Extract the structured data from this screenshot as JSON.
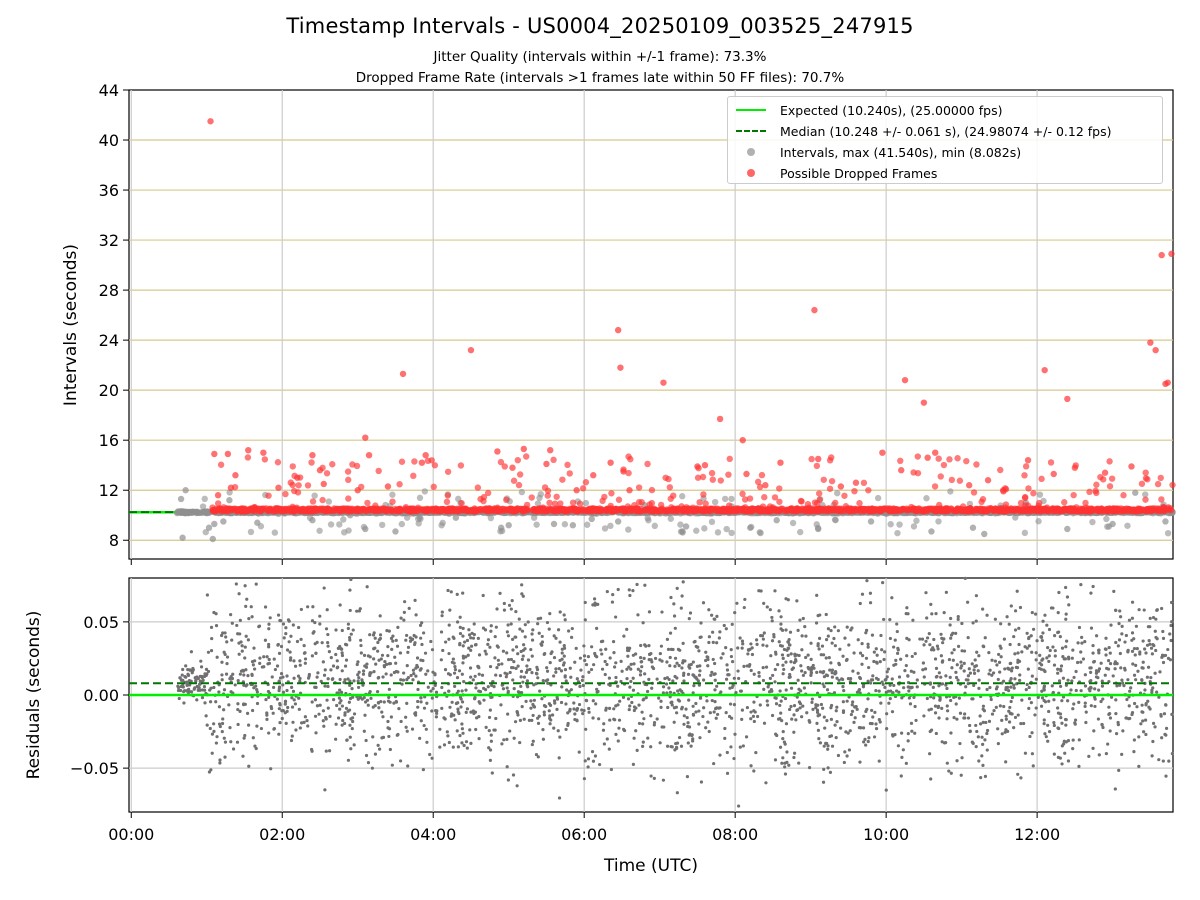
{
  "header": {
    "title": "Timestamp Intervals - US0004_20250109_003525_247915",
    "subtitle1": "Jitter Quality (intervals within +/-1 frame): 73.3%",
    "subtitle2": "Dropped Frame Rate (intervals >1 frames late within 50 FF files): 70.7%"
  },
  "colors": {
    "expected": "#00ee00",
    "median": "#007700",
    "intervals": "#909090",
    "dropped": "#ff3333",
    "residuals": "#707070",
    "hgrid_top": "#d7c98c",
    "grid": "#cccccc"
  },
  "legend": {
    "expected": "Expected (10.240s), (25.00000 fps)",
    "median": "Median (10.248 +/- 0.061 s), (24.98074 +/- 0.12 fps)",
    "intervals": "Intervals, max (41.540s), min (8.082s)",
    "dropped": "Possible Dropped Frames"
  },
  "chart_data": [
    {
      "type": "scatter",
      "ylabel": "Intervals (seconds)",
      "x_range_hours": [
        -0.03,
        13.8
      ],
      "ylim": [
        6.5,
        44
      ],
      "yticks": [
        8,
        12,
        16,
        20,
        24,
        28,
        32,
        36,
        40,
        44
      ],
      "grid": true,
      "legend_position": "top-right",
      "expected_value": 10.24,
      "median_value": 10.248,
      "series": [
        {
          "name": "Intervals, max (41.540s), min (8.082s)",
          "x_range_hours": [
            0.6,
            13.8
          ],
          "baseline": 10.24,
          "min": 8.082,
          "max": 41.54,
          "x_hours": [
            0.62,
            0.66,
            0.68,
            0.72,
            1.03,
            1.08,
            1.1,
            1.22,
            1.3,
            1.67,
            2.4,
            2.9,
            3.1,
            3.5,
            4.3,
            4.9,
            5.0,
            5.6,
            5.85,
            6.1,
            6.45,
            6.8,
            7.3,
            7.35,
            8.2,
            8.55,
            9.1,
            9.8,
            10.6,
            11.15,
            11.3,
            11.85,
            12.4,
            13.0,
            13.3,
            13.7
          ],
          "y": [
            10.3,
            11.3,
            8.2,
            12.0,
            9.0,
            8.1,
            9.3,
            9.5,
            11.2,
            9.4,
            9.6,
            10.0,
            8.9,
            8.7,
            9.8,
            9.0,
            9.2,
            9.3,
            9.2,
            9.7,
            9.5,
            10.8,
            8.7,
            9.1,
            9.0,
            9.6,
            8.9,
            9.5,
            8.7,
            9.0,
            8.5,
            11.0,
            8.9,
            9.3,
            11.8,
            9.5
          ]
        },
        {
          "name": "Possible Dropped Frames",
          "x_range_hours": [
            1.05,
            13.8
          ],
          "baseline": 10.25,
          "x_hours": [
            1.05,
            1.1,
            1.15,
            1.28,
            1.32,
            1.38,
            1.55,
            1.75,
            1.95,
            2.2,
            2.4,
            2.5,
            2.55,
            3.0,
            3.1,
            3.15,
            3.4,
            3.6,
            3.85,
            3.9,
            4.5,
            4.85,
            5.05,
            5.2,
            5.5,
            5.55,
            5.9,
            6.12,
            6.35,
            6.45,
            6.48,
            6.52,
            6.6,
            7.05,
            7.5,
            7.6,
            7.8,
            8.1,
            8.15,
            8.4,
            8.6,
            9.05,
            9.1,
            9.4,
            9.6,
            9.95,
            10.2,
            10.25,
            10.5,
            10.55,
            10.65,
            11.1,
            11.35,
            11.55,
            11.88,
            12.1,
            12.22,
            12.4,
            12.5,
            12.9,
            13.25,
            13.5,
            13.57,
            13.65,
            13.7,
            13.73,
            13.78
          ],
          "y": [
            41.5,
            14.9,
            11.6,
            14.9,
            12.2,
            13.2,
            15.2,
            15.0,
            12.2,
            13.0,
            14.8,
            13.6,
            12.5,
            12.0,
            16.2,
            14.8,
            12.3,
            21.3,
            14.2,
            14.8,
            23.2,
            15.1,
            13.8,
            15.3,
            14.1,
            15.2,
            12.0,
            13.2,
            14.2,
            24.8,
            21.8,
            13.5,
            12.0,
            20.6,
            13.9,
            14.0,
            17.7,
            16.0,
            13.3,
            12.4,
            14.2,
            26.4,
            14.5,
            12.3,
            12.6,
            15.0,
            13.6,
            20.8,
            19.0,
            14.6,
            15.0,
            12.4,
            12.8,
            12.0,
            14.4,
            21.6,
            13.3,
            19.3,
            13.8,
            13.4,
            13.9,
            23.8,
            23.2,
            30.8,
            20.5,
            20.6,
            30.9
          ]
        },
        {
          "name": "Expected (10.240s), (25.00000 fps)",
          "line_y": 10.24
        },
        {
          "name": "Median (10.248 +/- 0.061 s), (24.98074 +/- 0.12 fps)",
          "line_y": 10.248
        }
      ]
    },
    {
      "type": "scatter",
      "xlabel": "Time (UTC)",
      "ylabel": "Residuals (seconds)",
      "x_range_hours": [
        -0.03,
        13.8
      ],
      "ylim": [
        -0.08,
        0.08
      ],
      "yticks": [
        -0.05,
        0.0,
        0.05
      ],
      "ytick_labels": [
        "−0.05",
        "0.00",
        "0.05"
      ],
      "xticks_hours": [
        0,
        2,
        4,
        6,
        8,
        10,
        12
      ],
      "xtick_labels": [
        "00:00",
        "02:00",
        "04:00",
        "06:00",
        "08:00",
        "10:00",
        "12:00"
      ],
      "grid": true,
      "expected_value": 0.0,
      "median_value": 0.008,
      "residual_spread": 0.08,
      "x_range_points": [
        0.6,
        13.8
      ]
    }
  ]
}
